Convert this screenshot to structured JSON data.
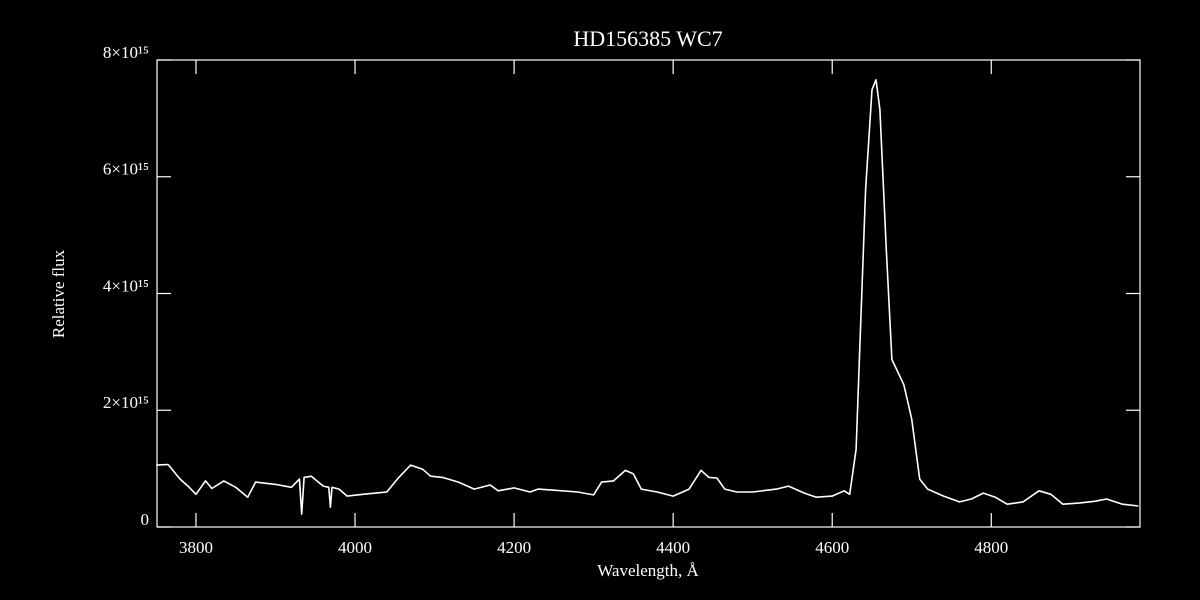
{
  "chart_data": {
    "type": "line",
    "title": "HD156385  WC7",
    "xlabel": "Wavelength, Å",
    "ylabel": "Relative flux",
    "color": "#ffffff",
    "x": [
      3750,
      3765,
      3780,
      3790,
      3800,
      3812,
      3820,
      3835,
      3850,
      3865,
      3875,
      3900,
      3920,
      3930,
      3933,
      3936,
      3945,
      3960,
      3967,
      3969,
      3971,
      3980,
      3990,
      4010,
      4040,
      4055,
      4070,
      4085,
      4095,
      4110,
      4130,
      4150,
      4170,
      4180,
      4200,
      4220,
      4230,
      4250,
      4280,
      4300,
      4310,
      4325,
      4340,
      4350,
      4360,
      4380,
      4400,
      4420,
      4435,
      4445,
      4455,
      4465,
      4480,
      4500,
      4530,
      4545,
      4565,
      4580,
      4600,
      4615,
      4622,
      4630,
      4635,
      4642,
      4650,
      4655,
      4660,
      4668,
      4675,
      4690,
      4700,
      4710,
      4720,
      4740,
      4760,
      4775,
      4790,
      4805,
      4820,
      4840,
      4860,
      4875,
      4890,
      4910,
      4930,
      4945,
      4965,
      4985
    ],
    "values": [
      1060000000000000.0,
      1070000000000000.0,
      820000000000000.0,
      700000000000000.0,
      560000000000000.0,
      790000000000000.0,
      660000000000000.0,
      790000000000000.0,
      680000000000000.0,
      510000000000000.0,
      770000000000000.0,
      730000000000000.0,
      680000000000000.0,
      820000000000000.0,
      220000000000000.0,
      850000000000000.0,
      870000000000000.0,
      700000000000000.0,
      680000000000000.0,
      340000000000000.0,
      680000000000000.0,
      650000000000000.0,
      530000000000000.0,
      560000000000000.0,
      600000000000000.0,
      850000000000000.0,
      1060000000000000.0,
      990000000000000.0,
      870000000000000.0,
      850000000000000.0,
      770000000000000.0,
      650000000000000.0,
      720000000000000.0,
      620000000000000.0,
      670000000000000.0,
      600000000000000.0,
      650000000000000.0,
      630000000000000.0,
      600000000000000.0,
      550000000000000.0,
      770000000000000.0,
      790000000000000.0,
      970000000000000.0,
      910000000000000.0,
      650000000000000.0,
      600000000000000.0,
      530000000000000.0,
      650000000000000.0,
      970000000000000.0,
      850000000000000.0,
      840000000000000.0,
      650000000000000.0,
      600000000000000.0,
      600000000000000.0,
      650000000000000.0,
      700000000000000.0,
      580000000000000.0,
      510000000000000.0,
      530000000000000.0,
      620000000000000.0,
      560000000000000.0,
      1330000000000000.0,
      3210000000000000.0,
      5780000000000000.0,
      7490000000000000.0,
      7660000000000000.0,
      7150000000000000.0,
      4750000000000000.0,
      2870000000000000.0,
      2440000000000000.0,
      1850000000000000.0,
      820000000000000.0,
      650000000000000.0,
      530000000000000.0,
      430000000000000.0,
      480000000000000.0,
      580000000000000.0,
      510000000000000.0,
      390000000000000.0,
      430000000000000.0,
      620000000000000.0,
      560000000000000.0,
      390000000000000.0,
      410000000000000.0,
      440000000000000.0,
      480000000000000.0,
      390000000000000.0,
      360000000000000.0
    ],
    "xlim": [
      3751,
      4987
    ],
    "ylim": [
      0,
      8000000000000000.0
    ],
    "xticks": [
      3800,
      4000,
      4200,
      4400,
      4600,
      4800
    ],
    "yticks": [
      0,
      {
        "value": 2000000000000000.0,
        "label": "2×10¹⁵"
      },
      {
        "value": 4000000000000000.0,
        "label": "4×10¹⁵"
      },
      {
        "value": 6000000000000000.0,
        "label": "6×10¹⁵"
      },
      {
        "value": 8000000000000000.0,
        "label": "8×10¹⁵"
      }
    ]
  }
}
